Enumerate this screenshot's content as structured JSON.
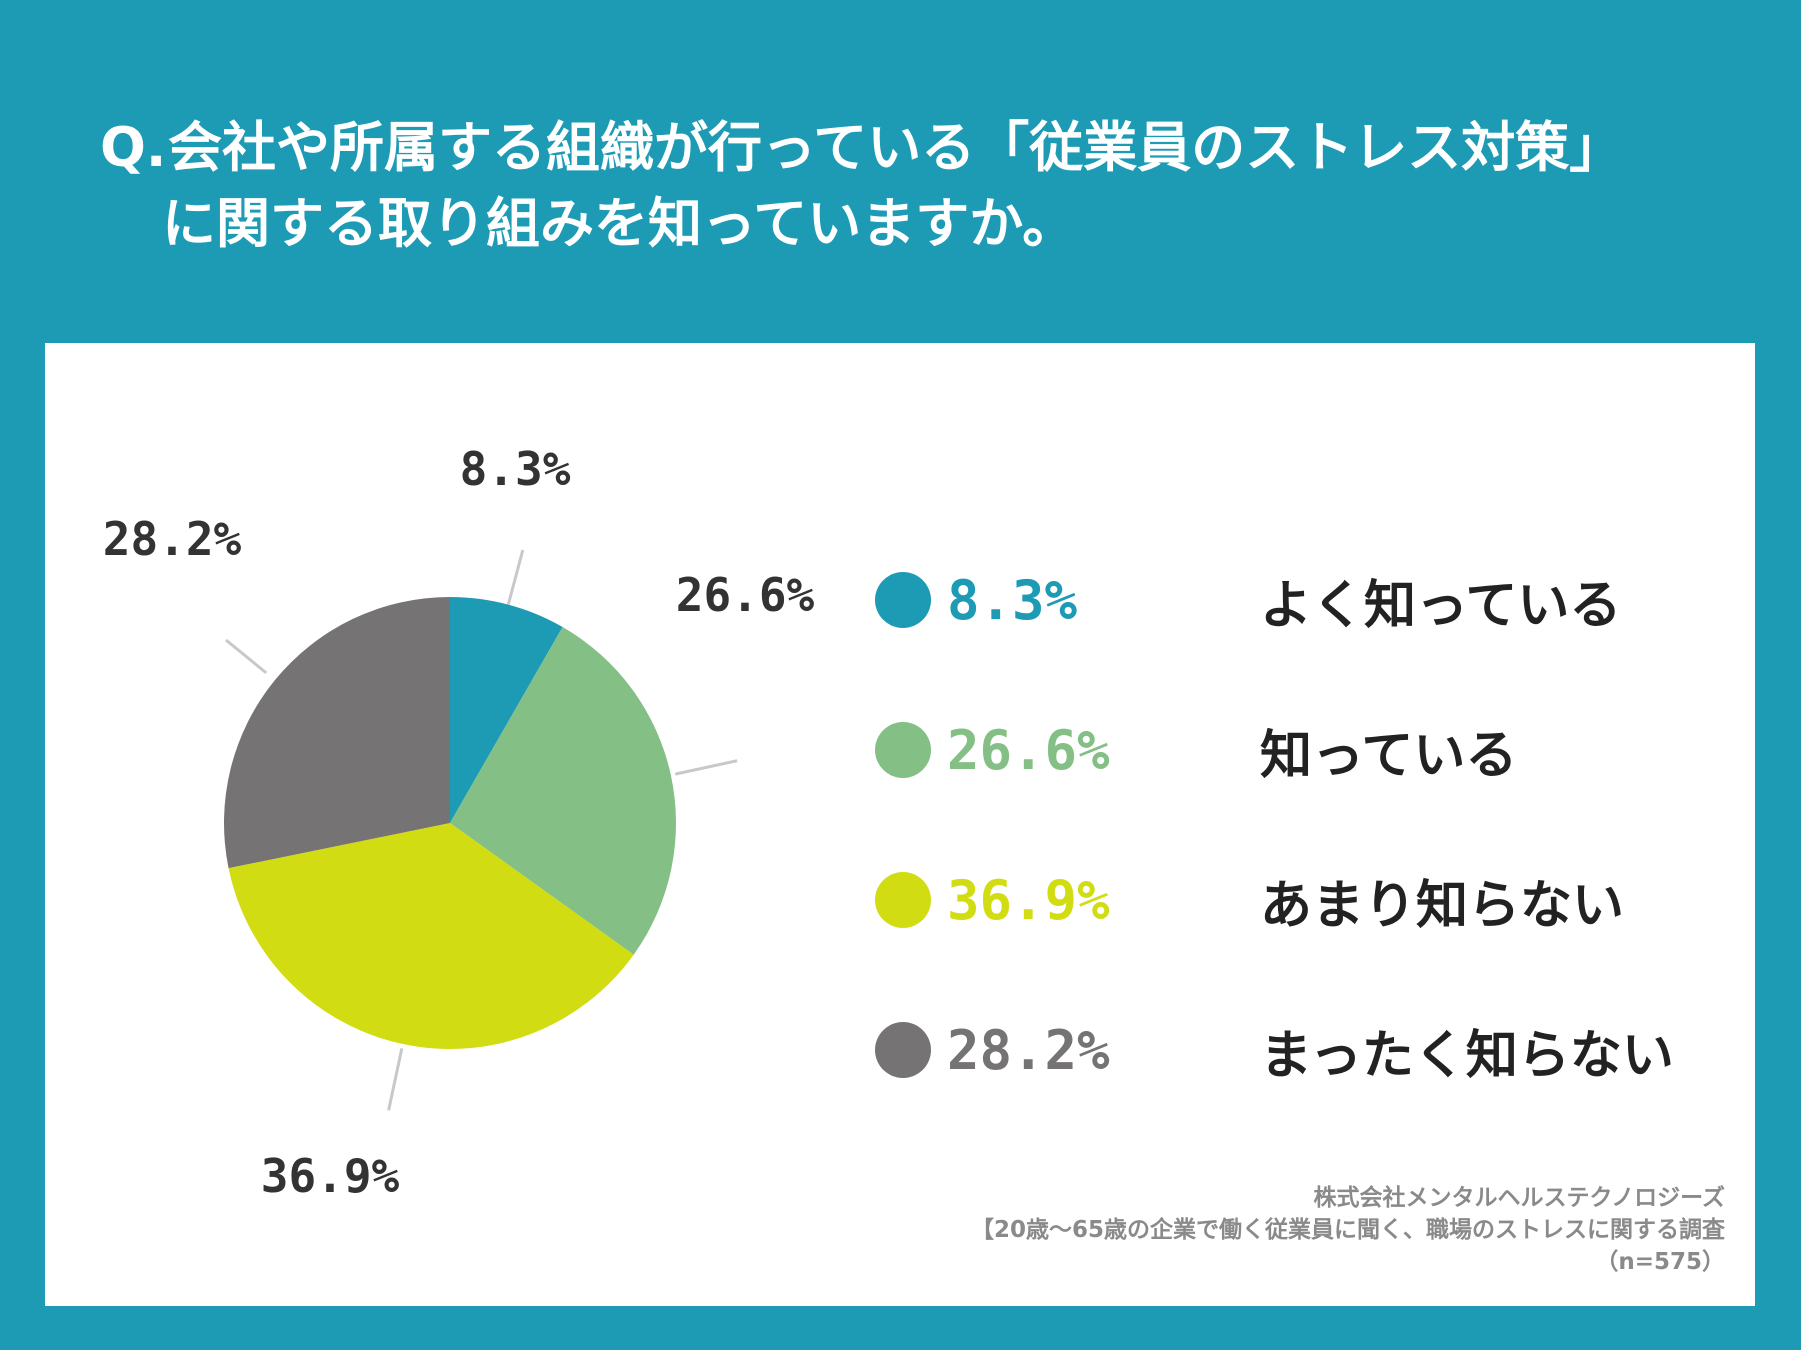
{
  "question": {
    "prefix": "Q.",
    "line1": "会社や所属する組織が行っている「従業員のストレス対策」",
    "line2": "に関する取り組みを知っていますか。"
  },
  "chart_data": {
    "type": "pie",
    "categories": [
      "よく知っている",
      "知っている",
      "あまり知らない",
      "まったく知らない"
    ],
    "values": [
      8.3,
      26.6,
      36.9,
      28.2
    ],
    "value_labels": [
      "8.3%",
      "26.6%",
      "36.9%",
      "28.2%"
    ],
    "colors": [
      "#1d9bb5",
      "#84bf85",
      "#d1dd12",
      "#757373"
    ],
    "legend_placement": "right"
  },
  "source": {
    "company": "株式会社メンタルヘルステクノロジーズ",
    "survey": "【20歳〜65歳の企業で働く従業員に聞く、職場のストレスに関する調査",
    "sample": "（n=575）"
  }
}
